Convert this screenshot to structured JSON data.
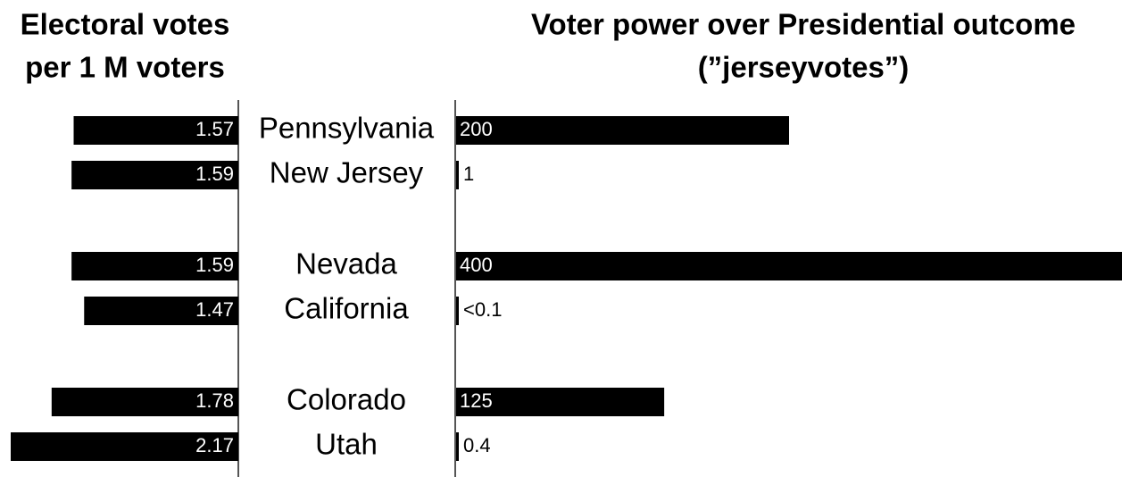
{
  "chart_data": [
    {
      "type": "bar",
      "direction": "left",
      "title": [
        "Electoral votes",
        "per 1 M voters"
      ],
      "categories": [
        "Pennsylvania",
        "New Jersey",
        "Nevada",
        "California",
        "Colorado",
        "Utah"
      ],
      "values": [
        1.57,
        1.59,
        1.59,
        1.47,
        1.78,
        2.17
      ],
      "color": "#000000",
      "xlim": [
        0,
        2.17
      ]
    },
    {
      "type": "bar",
      "direction": "right",
      "title": [
        "Voter power over Presidential outcome",
        "(”jerseyvotes”)"
      ],
      "values": [
        200,
        1,
        400,
        0.1,
        125,
        0.4
      ],
      "value_labels": [
        "200",
        "1",
        "400",
        "<0.1",
        "125",
        "0.4"
      ],
      "color": "#000000",
      "xlim": [
        0,
        400
      ]
    }
  ]
}
